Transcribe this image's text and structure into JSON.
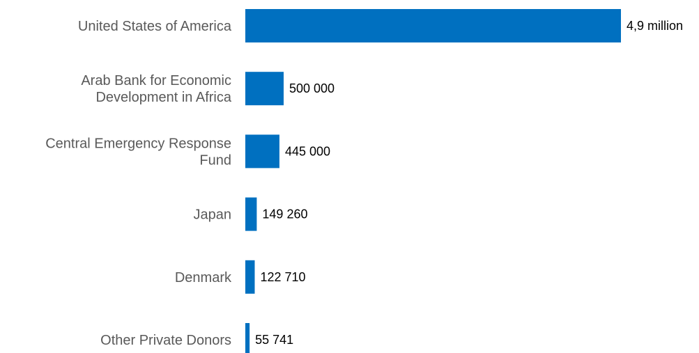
{
  "chart_data": {
    "type": "bar",
    "orientation": "horizontal",
    "title": "",
    "xlabel": "",
    "ylabel": "",
    "grid": false,
    "legend": "none",
    "color": "#0070C0",
    "label_color": "#595959",
    "categories": [
      [
        "United States of America"
      ],
      [
        "Arab Bank for Economic",
        "Development in Africa"
      ],
      [
        "Central Emergency Response",
        "Fund"
      ],
      [
        "Japan"
      ],
      [
        "Denmark"
      ],
      [
        "Other Private Donors"
      ]
    ],
    "values": [
      4900000,
      500000,
      445000,
      149260,
      122710,
      55741
    ],
    "data_labels": [
      "4,9 million",
      "500 000",
      "445 000",
      "149 260",
      "122 710",
      "55 741"
    ],
    "xlim": [
      0,
      4900000
    ]
  }
}
